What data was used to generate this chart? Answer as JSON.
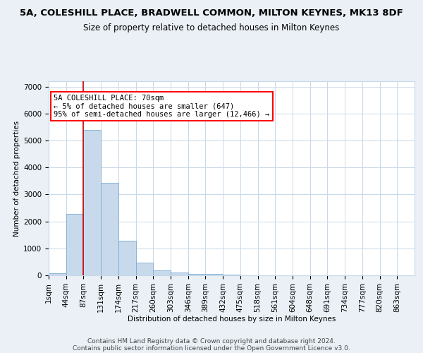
{
  "title1": "5A, COLESHILL PLACE, BRADWELL COMMON, MILTON KEYNES, MK13 8DF",
  "title2": "Size of property relative to detached houses in Milton Keynes",
  "xlabel": "Distribution of detached houses by size in Milton Keynes",
  "ylabel": "Number of detached properties",
  "footer1": "Contains HM Land Registry data © Crown copyright and database right 2024.",
  "footer2": "Contains public sector information licensed under the Open Government Licence v3.0.",
  "bin_labels": [
    "1sqm",
    "44sqm",
    "87sqm",
    "131sqm",
    "174sqm",
    "217sqm",
    "260sqm",
    "303sqm",
    "346sqm",
    "389sqm",
    "432sqm",
    "475sqm",
    "518sqm",
    "561sqm",
    "604sqm",
    "648sqm",
    "691sqm",
    "734sqm",
    "777sqm",
    "820sqm",
    "863sqm"
  ],
  "bar_heights": [
    80,
    2280,
    5400,
    3420,
    1290,
    460,
    185,
    95,
    60,
    40,
    30,
    0,
    0,
    0,
    0,
    0,
    0,
    0,
    0,
    0,
    0
  ],
  "bar_color": "#c9d9ec",
  "bar_edgecolor": "#7aadd4",
  "grid_color": "#c8d8e8",
  "red_line_x": 2.0,
  "annotation_text": "5A COLESHILL PLACE: 70sqm\n← 5% of detached houses are smaller (647)\n95% of semi-detached houses are larger (12,466) →",
  "annotation_box_color": "white",
  "annotation_box_edgecolor": "red",
  "red_line_color": "#cc0000",
  "ylim": [
    0,
    7200
  ],
  "yticks": [
    0,
    1000,
    2000,
    3000,
    4000,
    5000,
    6000,
    7000
  ],
  "bg_color": "#eaf0f6",
  "plot_bg_color": "white",
  "title1_fontsize": 9.5,
  "title2_fontsize": 8.5,
  "annotation_fontsize": 7.5,
  "axis_fontsize": 7.5,
  "footer_fontsize": 6.5
}
